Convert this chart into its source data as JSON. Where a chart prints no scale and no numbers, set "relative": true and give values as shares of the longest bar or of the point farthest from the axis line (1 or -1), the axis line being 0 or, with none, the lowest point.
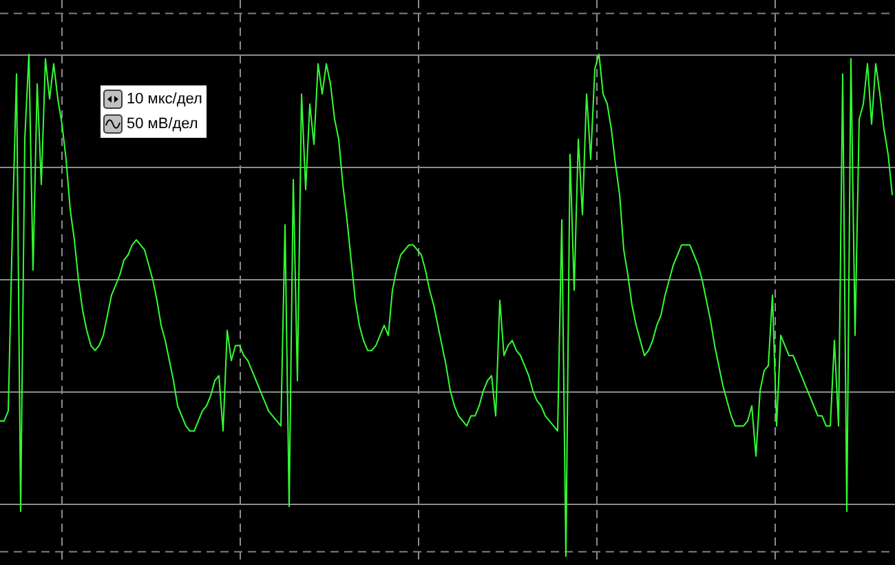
{
  "chart_data": {
    "type": "line",
    "relative": true,
    "grid": true,
    "categories": [
      null,
      null,
      null,
      null,
      null,
      null,
      null,
      null,
      null,
      null,
      null,
      null,
      null,
      null,
      null,
      null,
      null,
      null,
      null,
      null,
      null,
      null,
      null,
      null,
      null,
      null,
      null,
      null,
      null,
      null,
      null,
      null,
      null,
      null,
      null,
      null,
      null,
      null,
      null,
      null,
      null,
      null,
      null,
      null,
      null,
      null,
      null,
      null,
      null,
      null,
      null,
      null,
      null,
      null,
      null,
      null,
      null,
      null,
      null,
      null,
      null,
      null,
      null,
      null,
      null,
      null,
      null,
      null,
      null,
      null,
      null,
      null,
      null,
      null,
      null,
      null,
      null,
      null,
      null,
      null,
      null,
      null,
      null,
      null,
      null,
      null,
      null,
      null,
      null,
      null,
      null,
      null,
      null,
      null,
      null,
      null,
      null,
      null,
      null,
      null,
      null,
      null,
      null,
      null,
      null,
      null,
      null,
      null,
      null,
      null,
      null,
      null,
      null,
      null,
      null,
      null,
      null,
      null,
      null,
      null,
      null,
      null,
      null,
      null,
      null,
      null,
      null,
      null,
      null,
      null,
      null,
      null,
      null,
      null,
      null,
      null,
      null,
      null,
      null,
      null,
      null,
      null,
      null,
      null,
      null,
      null,
      null,
      null,
      null,
      null,
      null,
      null,
      null,
      null,
      null,
      null,
      null,
      null,
      null,
      null,
      null,
      null,
      null,
      null,
      null,
      null,
      null,
      null,
      null,
      null,
      null,
      null,
      null,
      null,
      null,
      null,
      null,
      null,
      null,
      null,
      null,
      null,
      null,
      null,
      null,
      null,
      null,
      null,
      null,
      null,
      null,
      null,
      null,
      null,
      null,
      null,
      null,
      null,
      null,
      null,
      null,
      null,
      null,
      null,
      null,
      null,
      null,
      null,
      null,
      null,
      null,
      null,
      null,
      null,
      null,
      null,
      null
    ],
    "series": [
      {
        "color": "#33ff33",
        "values": [
          0.27,
          0.27,
          0.29,
          0.65,
          0.96,
          0.09,
          0.83,
          1,
          0.57,
          0.94,
          0.74,
          0.99,
          0.91,
          0.98,
          0.91,
          0.86,
          0.79,
          0.69,
          0.63,
          0.55,
          0.49,
          0.45,
          0.42,
          0.41,
          0.42,
          0.44,
          0.48,
          0.52,
          0.54,
          0.56,
          0.59,
          0.6,
          0.62,
          0.63,
          0.62,
          0.61,
          0.58,
          0.55,
          0.51,
          0.46,
          0.43,
          0.39,
          0.35,
          0.3,
          0.28,
          0.26,
          0.25,
          0.25,
          0.27,
          0.29,
          0.3,
          0.32,
          0.35,
          0.36,
          0.25,
          0.45,
          0.39,
          0.42,
          0.42,
          0.4,
          0.39,
          0.37,
          0.35,
          0.33,
          0.31,
          0.29,
          0.28,
          0.27,
          0.26,
          0.66,
          0.1,
          0.75,
          0.35,
          0.92,
          0.73,
          0.9,
          0.82,
          0.98,
          0.92,
          0.98,
          0.94,
          0.87,
          0.83,
          0.74,
          0.67,
          0.59,
          0.51,
          0.46,
          0.43,
          0.41,
          0.41,
          0.42,
          0.44,
          0.46,
          0.44,
          0.53,
          0.57,
          0.6,
          0.61,
          0.62,
          0.62,
          0.61,
          0.6,
          0.57,
          0.53,
          0.5,
          0.46,
          0.42,
          0.38,
          0.33,
          0.3,
          0.28,
          0.27,
          0.26,
          0.28,
          0.28,
          0.3,
          0.33,
          0.35,
          0.36,
          0.28,
          0.51,
          0.4,
          0.42,
          0.43,
          0.41,
          0.4,
          0.38,
          0.36,
          0.33,
          0.31,
          0.3,
          0.28,
          0.27,
          0.26,
          0.25,
          0.67,
          0,
          0.8,
          0.53,
          0.83,
          0.68,
          0.92,
          0.79,
          0.97,
          1,
          0.92,
          0.9,
          0.85,
          0.78,
          0.72,
          0.61,
          0.56,
          0.5,
          0.46,
          0.43,
          0.4,
          0.41,
          0.43,
          0.46,
          0.48,
          0.52,
          0.55,
          0.58,
          0.6,
          0.62,
          0.62,
          0.62,
          0.6,
          0.58,
          0.55,
          0.51,
          0.47,
          0.42,
          0.38,
          0.34,
          0.31,
          0.28,
          0.26,
          0.26,
          0.26,
          0.27,
          0.3,
          0.2,
          0.33,
          0.37,
          0.38,
          0.52,
          0.26,
          0.44,
          0.42,
          0.4,
          0.4,
          0.38,
          0.36,
          0.34,
          0.32,
          0.3,
          0.28,
          0.28,
          0.26,
          0.26,
          0.43,
          0.26,
          0.96,
          0.09,
          0.99,
          0.44,
          0.87,
          0.9,
          0.98,
          0.86,
          0.98,
          0.92,
          0.85,
          0.8,
          0.72
        ]
      }
    ],
    "ref_lines": [
      {
        "axis": "y",
        "value": 1.08,
        "color": "#808080",
        "line_style": "dashed"
      },
      {
        "axis": "y",
        "value": 0.01,
        "color": "#808080",
        "line_style": "dashed"
      }
    ],
    "annotations": [
      "10 мкс/дел",
      "50 мВ/дел"
    ]
  }
}
